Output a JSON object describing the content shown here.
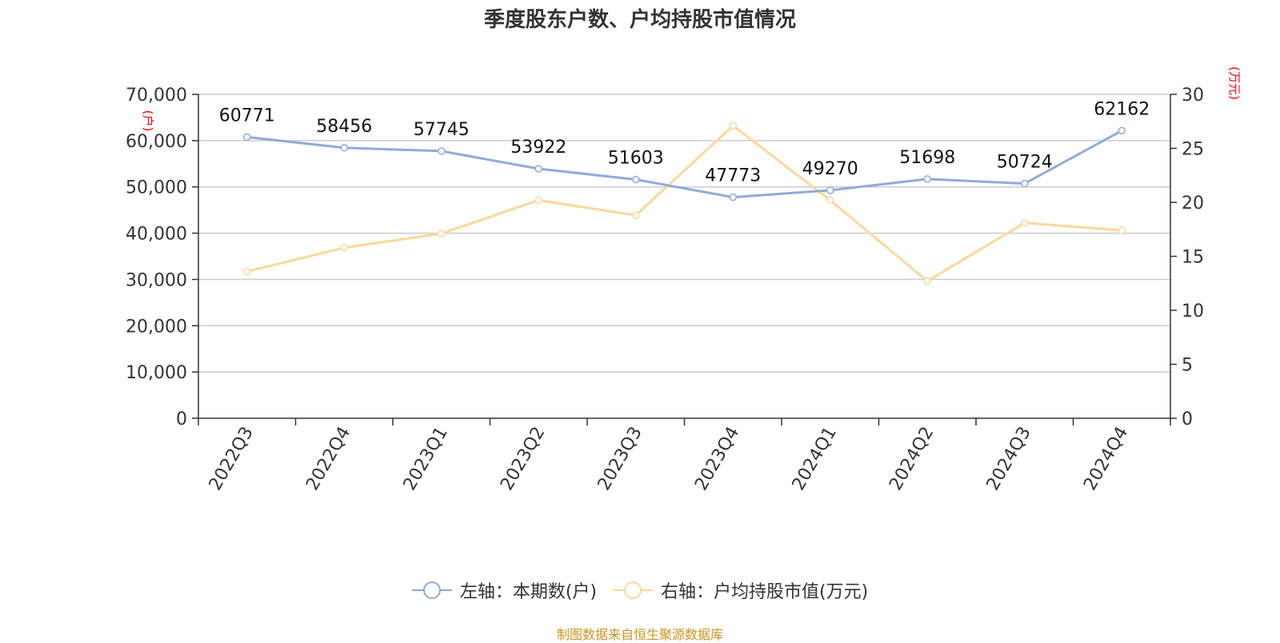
{
  "title": "季度股东户数、户均持股市值情况",
  "source": "制图数据来自恒生聚源数据库",
  "legend": {
    "left": "左轴：本期数(户)",
    "right": "右轴：户均持股市值(万元)"
  },
  "colors": {
    "left_series": "#8eabd8",
    "right_series": "#fbd89a",
    "unit_text": "#ff0000",
    "source_text": "#c8961e"
  },
  "chart_data": {
    "type": "line",
    "title": "季度股东户数、户均持股市值情况",
    "categories": [
      "2022Q3",
      "2022Q4",
      "2023Q1",
      "2023Q2",
      "2023Q3",
      "2023Q4",
      "2024Q1",
      "2024Q2",
      "2024Q3",
      "2024Q4"
    ],
    "left_axis": {
      "unit": "(户)",
      "ylim": [
        0,
        70000
      ],
      "ticks": [
        0,
        10000,
        20000,
        30000,
        40000,
        50000,
        60000,
        70000
      ],
      "tick_labels": [
        "0",
        "10,000",
        "20,000",
        "30,000",
        "40,000",
        "50,000",
        "60,000",
        "70,000"
      ]
    },
    "right_axis": {
      "unit": "(万元)",
      "ylim": [
        0,
        30
      ],
      "ticks": [
        0,
        5,
        10,
        15,
        20,
        25,
        30
      ],
      "tick_labels": [
        "0",
        "5",
        "10",
        "15",
        "20",
        "25",
        "30"
      ]
    },
    "grid": true,
    "legend_position": "bottom",
    "series": [
      {
        "name": "左轴：本期数(户)",
        "axis": "left",
        "values": [
          60771,
          58456,
          57745,
          53922,
          51603,
          47773,
          49270,
          51698,
          50724,
          62162
        ],
        "labels": [
          "60771",
          "58456",
          "57745",
          "53922",
          "51603",
          "47773",
          "49270",
          "51698",
          "50724",
          "62162"
        ]
      },
      {
        "name": "右轴：户均持股市值(万元)",
        "axis": "right",
        "values": [
          13.6,
          15.8,
          17.1,
          20.2,
          18.8,
          27.1,
          20.2,
          12.7,
          18.1,
          17.4
        ]
      }
    ]
  }
}
